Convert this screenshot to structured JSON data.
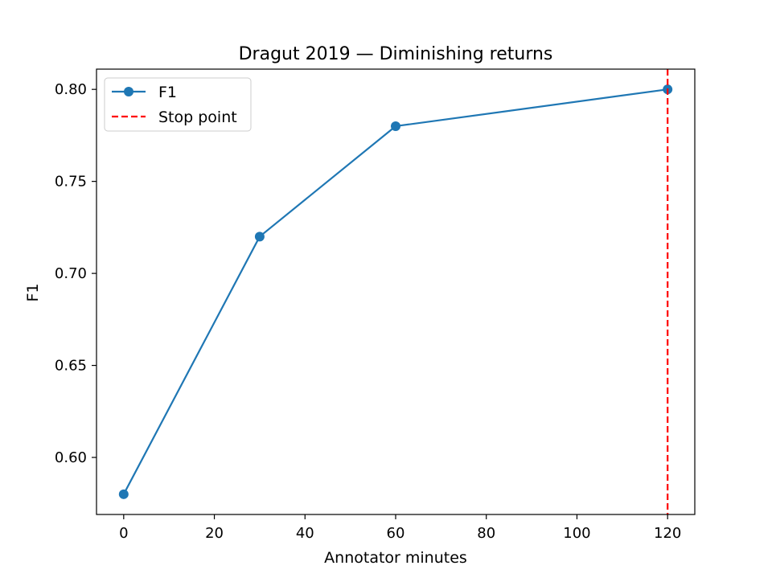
{
  "chart_data": {
    "type": "line",
    "title": "Dragut 2019 — Diminishing returns",
    "xlabel": "Annotator minutes",
    "ylabel": "F1",
    "xlim": [
      -6,
      126
    ],
    "ylim": [
      0.569,
      0.811
    ],
    "x_ticks": [
      0,
      20,
      40,
      60,
      80,
      100,
      120
    ],
    "x_tick_labels": [
      "0",
      "20",
      "40",
      "60",
      "80",
      "100",
      "120"
    ],
    "y_ticks": [
      0.6,
      0.65,
      0.7,
      0.75,
      0.8
    ],
    "y_tick_labels": [
      "0.60",
      "0.65",
      "0.70",
      "0.75",
      "0.80"
    ],
    "grid": false,
    "legend_position": "top-left",
    "series": [
      {
        "name": "F1",
        "x": [
          0,
          30,
          60,
          120
        ],
        "values": [
          0.58,
          0.72,
          0.78,
          0.8
        ],
        "color": "#1f77b4",
        "marker": "circle"
      }
    ],
    "reference_lines": [
      {
        "name": "Stop point",
        "orientation": "vertical",
        "x": 120,
        "color": "#ff0000",
        "style": "dashed"
      }
    ]
  }
}
